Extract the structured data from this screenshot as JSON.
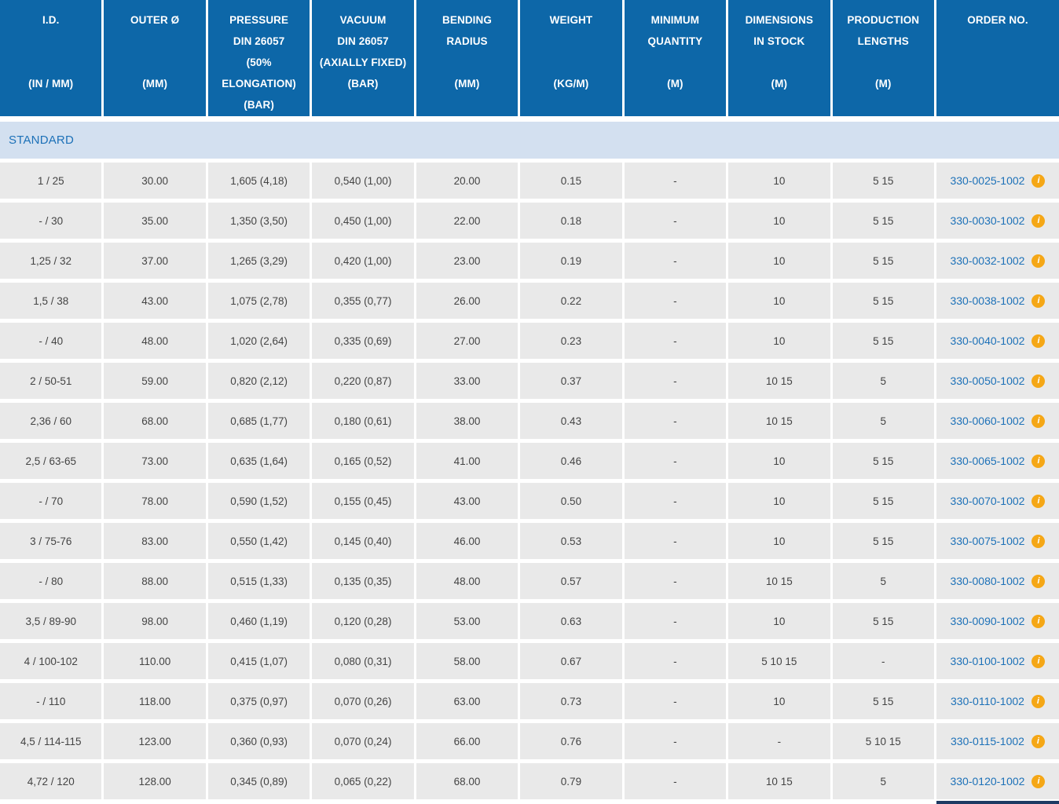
{
  "header": {
    "columns": [
      {
        "key": "id",
        "lines": [
          "I.D.",
          "",
          "",
          "(IN / MM)"
        ]
      },
      {
        "key": "outer_diameter",
        "lines": [
          "OUTER Ø",
          "",
          "",
          "(MM)"
        ]
      },
      {
        "key": "pressure",
        "lines": [
          "PRESSURE",
          "DIN 26057",
          "(50%",
          "ELONGATION)",
          "(BAR)"
        ]
      },
      {
        "key": "vacuum",
        "lines": [
          "VACUUM",
          "DIN 26057",
          "(AXIALLY FIXED)",
          "(BAR)"
        ]
      },
      {
        "key": "bending_radius",
        "lines": [
          "BENDING",
          "RADIUS",
          "",
          "(MM)"
        ]
      },
      {
        "key": "weight",
        "lines": [
          "WEIGHT",
          "",
          "",
          "(KG/M)"
        ]
      },
      {
        "key": "minimum_quantity",
        "lines": [
          "MINIMUM",
          "QUANTITY",
          "",
          "(M)"
        ]
      },
      {
        "key": "dimensions_in_stock",
        "lines": [
          "DIMENSIONS",
          "IN STOCK",
          "",
          "(M)"
        ]
      },
      {
        "key": "production_lengths",
        "lines": [
          "PRODUCTION",
          "LENGTHS",
          "",
          "(M)"
        ]
      },
      {
        "key": "order_no",
        "lines": [
          "ORDER NO."
        ]
      }
    ]
  },
  "section": {
    "label": "STANDARD"
  },
  "icons": {
    "info_glyph": "i"
  },
  "rows": [
    {
      "id": "1 / 25",
      "outer_diameter": "30.00",
      "pressure": "1,605 (4,18)",
      "vacuum": "0,540 (1,00)",
      "bending_radius": "20.00",
      "weight": "0.15",
      "minimum_quantity": "-",
      "dimensions_in_stock": "10",
      "production_lengths": "5 15",
      "order_no": "330-0025-1002"
    },
    {
      "id": "- / 30",
      "outer_diameter": "35.00",
      "pressure": "1,350 (3,50)",
      "vacuum": "0,450 (1,00)",
      "bending_radius": "22.00",
      "weight": "0.18",
      "minimum_quantity": "-",
      "dimensions_in_stock": "10",
      "production_lengths": "5 15",
      "order_no": "330-0030-1002"
    },
    {
      "id": "1,25 / 32",
      "outer_diameter": "37.00",
      "pressure": "1,265 (3,29)",
      "vacuum": "0,420 (1,00)",
      "bending_radius": "23.00",
      "weight": "0.19",
      "minimum_quantity": "-",
      "dimensions_in_stock": "10",
      "production_lengths": "5 15",
      "order_no": "330-0032-1002"
    },
    {
      "id": "1,5 / 38",
      "outer_diameter": "43.00",
      "pressure": "1,075 (2,78)",
      "vacuum": "0,355 (0,77)",
      "bending_radius": "26.00",
      "weight": "0.22",
      "minimum_quantity": "-",
      "dimensions_in_stock": "10",
      "production_lengths": "5 15",
      "order_no": "330-0038-1002"
    },
    {
      "id": "- / 40",
      "outer_diameter": "48.00",
      "pressure": "1,020 (2,64)",
      "vacuum": "0,335 (0,69)",
      "bending_radius": "27.00",
      "weight": "0.23",
      "minimum_quantity": "-",
      "dimensions_in_stock": "10",
      "production_lengths": "5 15",
      "order_no": "330-0040-1002"
    },
    {
      "id": "2 / 50-51",
      "outer_diameter": "59.00",
      "pressure": "0,820 (2,12)",
      "vacuum": "0,220 (0,87)",
      "bending_radius": "33.00",
      "weight": "0.37",
      "minimum_quantity": "-",
      "dimensions_in_stock": "10 15",
      "production_lengths": "5",
      "order_no": "330-0050-1002"
    },
    {
      "id": "2,36 / 60",
      "outer_diameter": "68.00",
      "pressure": "0,685 (1,77)",
      "vacuum": "0,180 (0,61)",
      "bending_radius": "38.00",
      "weight": "0.43",
      "minimum_quantity": "-",
      "dimensions_in_stock": "10 15",
      "production_lengths": "5",
      "order_no": "330-0060-1002"
    },
    {
      "id": "2,5 / 63-65",
      "outer_diameter": "73.00",
      "pressure": "0,635 (1,64)",
      "vacuum": "0,165 (0,52)",
      "bending_radius": "41.00",
      "weight": "0.46",
      "minimum_quantity": "-",
      "dimensions_in_stock": "10",
      "production_lengths": "5 15",
      "order_no": "330-0065-1002"
    },
    {
      "id": "- / 70",
      "outer_diameter": "78.00",
      "pressure": "0,590 (1,52)",
      "vacuum": "0,155 (0,45)",
      "bending_radius": "43.00",
      "weight": "0.50",
      "minimum_quantity": "-",
      "dimensions_in_stock": "10",
      "production_lengths": "5 15",
      "order_no": "330-0070-1002"
    },
    {
      "id": "3 / 75-76",
      "outer_diameter": "83.00",
      "pressure": "0,550 (1,42)",
      "vacuum": "0,145 (0,40)",
      "bending_radius": "46.00",
      "weight": "0.53",
      "minimum_quantity": "-",
      "dimensions_in_stock": "10",
      "production_lengths": "5 15",
      "order_no": "330-0075-1002"
    },
    {
      "id": "- / 80",
      "outer_diameter": "88.00",
      "pressure": "0,515 (1,33)",
      "vacuum": "0,135 (0,35)",
      "bending_radius": "48.00",
      "weight": "0.57",
      "minimum_quantity": "-",
      "dimensions_in_stock": "10 15",
      "production_lengths": "5",
      "order_no": "330-0080-1002"
    },
    {
      "id": "3,5 / 89-90",
      "outer_diameter": "98.00",
      "pressure": "0,460 (1,19)",
      "vacuum": "0,120 (0,28)",
      "bending_radius": "53.00",
      "weight": "0.63",
      "minimum_quantity": "-",
      "dimensions_in_stock": "10",
      "production_lengths": "5 15",
      "order_no": "330-0090-1002"
    },
    {
      "id": "4 / 100-102",
      "outer_diameter": "110.00",
      "pressure": "0,415 (1,07)",
      "vacuum": "0,080 (0,31)",
      "bending_radius": "58.00",
      "weight": "0.67",
      "minimum_quantity": "-",
      "dimensions_in_stock": "5 10 15",
      "production_lengths": "-",
      "order_no": "330-0100-1002"
    },
    {
      "id": "- / 110",
      "outer_diameter": "118.00",
      "pressure": "0,375 (0,97)",
      "vacuum": "0,070 (0,26)",
      "bending_radius": "63.00",
      "weight": "0.73",
      "minimum_quantity": "-",
      "dimensions_in_stock": "10",
      "production_lengths": "5 15",
      "order_no": "330-0110-1002"
    },
    {
      "id": "4,5 / 114-115",
      "outer_diameter": "123.00",
      "pressure": "0,360 (0,93)",
      "vacuum": "0,070 (0,24)",
      "bending_radius": "66.00",
      "weight": "0.76",
      "minimum_quantity": "-",
      "dimensions_in_stock": "-",
      "production_lengths": "5 10 15",
      "order_no": "330-0115-1002"
    },
    {
      "id": "4,72 / 120",
      "outer_diameter": "128.00",
      "pressure": "0,345 (0,89)",
      "vacuum": "0,065 (0,22)",
      "bending_radius": "68.00",
      "weight": "0.79",
      "minimum_quantity": "-",
      "dimensions_in_stock": "10 15",
      "production_lengths": "5",
      "order_no": "330-0120-1002"
    }
  ],
  "colors": {
    "header_bg": "#0d67a8",
    "header_text": "#ffffff",
    "section_bg": "#d3e0f0",
    "section_text": "#1d71b8",
    "row_bg": "#e9e9e9",
    "row_text": "#444444",
    "order_link": "#1d71b8",
    "info_badge_bg": "#f5a716",
    "info_badge_text": "#ffffff",
    "bottom_bar": "#1d3a63"
  }
}
